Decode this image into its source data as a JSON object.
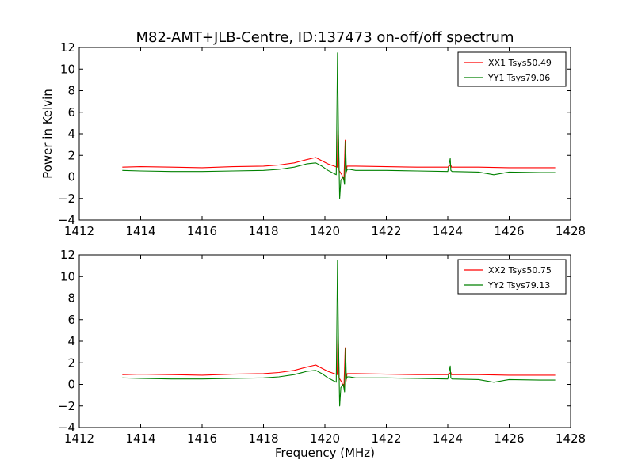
{
  "title": "M82-AMT+JLB-Centre, ID:137473 on-off/off spectrum",
  "colors": {
    "red": "#ff0000",
    "green": "#008000"
  },
  "chart_data": [
    {
      "type": "line",
      "ylabel": "Power in Kelvin",
      "xlabel": "",
      "xlim": [
        1412,
        1428
      ],
      "ylim": [
        -4,
        12
      ],
      "xticks": [
        "1412",
        "1414",
        "1416",
        "1418",
        "1420",
        "1422",
        "1424",
        "1426",
        "1428"
      ],
      "yticks": [
        "−4",
        "−2",
        "0",
        "2",
        "4",
        "6",
        "8",
        "10",
        "12"
      ],
      "legend_position": "top-right",
      "series": [
        {
          "name": "XX1 Tsys50.49",
          "color": "#ff0000",
          "x": [
            1413.4,
            1414.0,
            1415.0,
            1416.0,
            1417.0,
            1418.0,
            1418.5,
            1419.0,
            1419.4,
            1419.7,
            1419.9,
            1420.1,
            1420.3,
            1420.4,
            1420.43,
            1420.46,
            1420.55,
            1420.62,
            1420.66,
            1420.69,
            1420.72,
            1420.8,
            1421.0,
            1422.0,
            1423.0,
            1424.0,
            1424.1,
            1424.12,
            1425.0,
            1426.0,
            1427.0,
            1427.5
          ],
          "y": [
            0.9,
            0.95,
            0.9,
            0.85,
            0.95,
            1.0,
            1.1,
            1.3,
            1.6,
            1.8,
            1.5,
            1.2,
            1.0,
            0.9,
            5.0,
            0.6,
            0.2,
            -0.3,
            3.4,
            0.3,
            1.0,
            1.0,
            1.0,
            0.95,
            0.9,
            0.9,
            1.1,
            0.9,
            0.9,
            0.85,
            0.85,
            0.85
          ]
        },
        {
          "name": "YY1 Tsys79.06",
          "color": "#008000",
          "x": [
            1413.4,
            1414.0,
            1415.0,
            1416.0,
            1417.0,
            1418.0,
            1418.5,
            1419.0,
            1419.4,
            1419.7,
            1419.9,
            1420.1,
            1420.3,
            1420.37,
            1420.41,
            1420.44,
            1420.48,
            1420.52,
            1420.6,
            1420.64,
            1420.67,
            1420.7,
            1420.73,
            1420.8,
            1421.0,
            1422.0,
            1423.0,
            1424.0,
            1424.08,
            1424.1,
            1424.14,
            1425.0,
            1425.5,
            1426.0,
            1427.0,
            1427.5
          ],
          "y": [
            0.6,
            0.55,
            0.5,
            0.5,
            0.55,
            0.6,
            0.7,
            0.9,
            1.2,
            1.3,
            1.0,
            0.6,
            0.3,
            0.2,
            11.5,
            4.0,
            -2.0,
            -0.3,
            0.0,
            -0.7,
            3.3,
            0.5,
            0.7,
            0.7,
            0.6,
            0.6,
            0.55,
            0.5,
            1.7,
            0.6,
            0.5,
            0.45,
            0.2,
            0.45,
            0.4,
            0.4
          ]
        }
      ]
    },
    {
      "type": "line",
      "ylabel": "",
      "xlabel": "Frequency (MHz)",
      "xlim": [
        1412,
        1428
      ],
      "ylim": [
        -4,
        12
      ],
      "xticks": [
        "1412",
        "1414",
        "1416",
        "1418",
        "1420",
        "1422",
        "1424",
        "1426",
        "1428"
      ],
      "yticks": [
        "−4",
        "−2",
        "0",
        "2",
        "4",
        "6",
        "8",
        "10",
        "12"
      ],
      "legend_position": "top-right",
      "series": [
        {
          "name": "XX2 Tsys50.75",
          "color": "#ff0000",
          "x": [
            1413.4,
            1414.0,
            1415.0,
            1416.0,
            1417.0,
            1418.0,
            1418.5,
            1419.0,
            1419.4,
            1419.7,
            1419.9,
            1420.1,
            1420.3,
            1420.4,
            1420.43,
            1420.46,
            1420.55,
            1420.62,
            1420.66,
            1420.69,
            1420.72,
            1420.8,
            1421.0,
            1422.0,
            1423.0,
            1424.0,
            1424.1,
            1424.12,
            1425.0,
            1426.0,
            1427.0,
            1427.5
          ],
          "y": [
            0.9,
            0.95,
            0.9,
            0.85,
            0.95,
            1.0,
            1.1,
            1.3,
            1.6,
            1.8,
            1.5,
            1.2,
            1.0,
            0.9,
            5.0,
            0.6,
            0.2,
            -0.3,
            3.4,
            0.3,
            1.0,
            1.0,
            1.0,
            0.95,
            0.9,
            0.9,
            1.1,
            0.9,
            0.9,
            0.85,
            0.85,
            0.85
          ]
        },
        {
          "name": "YY2 Tsys79.13",
          "color": "#008000",
          "x": [
            1413.4,
            1414.0,
            1415.0,
            1416.0,
            1417.0,
            1418.0,
            1418.5,
            1419.0,
            1419.4,
            1419.7,
            1419.9,
            1420.1,
            1420.3,
            1420.37,
            1420.41,
            1420.44,
            1420.48,
            1420.52,
            1420.6,
            1420.64,
            1420.67,
            1420.7,
            1420.73,
            1420.8,
            1421.0,
            1422.0,
            1423.0,
            1424.0,
            1424.08,
            1424.1,
            1424.14,
            1425.0,
            1425.5,
            1426.0,
            1427.0,
            1427.5
          ],
          "y": [
            0.6,
            0.55,
            0.5,
            0.5,
            0.55,
            0.6,
            0.7,
            0.9,
            1.2,
            1.3,
            1.0,
            0.6,
            0.3,
            0.2,
            11.5,
            4.0,
            -2.0,
            -0.3,
            0.0,
            -0.7,
            3.3,
            0.5,
            0.7,
            0.7,
            0.6,
            0.6,
            0.55,
            0.5,
            1.7,
            0.6,
            0.5,
            0.45,
            0.2,
            0.45,
            0.4,
            0.4
          ]
        }
      ]
    }
  ]
}
